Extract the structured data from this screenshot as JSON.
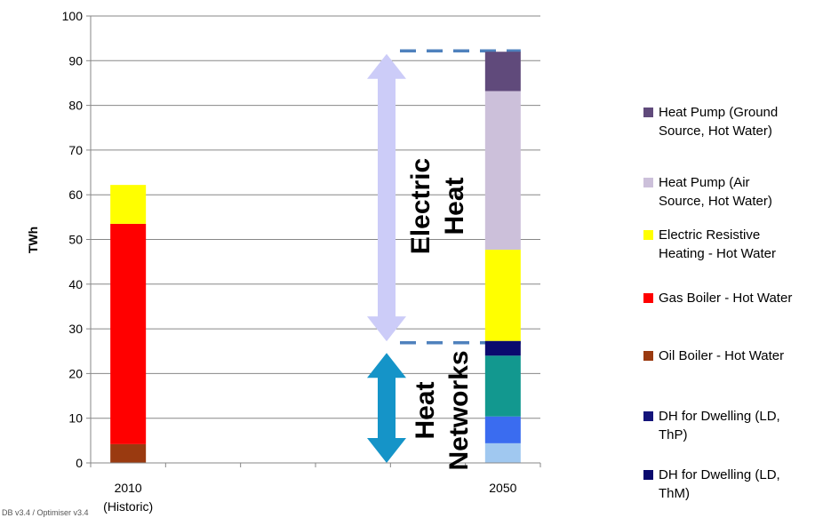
{
  "chart_data": {
    "type": "bar",
    "stacked": true,
    "ylabel": "TWh",
    "ylim": [
      0,
      100
    ],
    "yticks": [
      "0",
      "10",
      "20",
      "30",
      "40",
      "50",
      "60",
      "70",
      "80",
      "90",
      "100"
    ],
    "grid": true,
    "legend_position": "right",
    "categories": [
      "2010",
      "",
      "",
      "",
      "",
      "2050"
    ],
    "category_sublabels": [
      "(Historic)",
      "",
      "",
      "",
      "",
      ""
    ],
    "series": [
      {
        "color": "#a0c8f0",
        "values": [
          0,
          0,
          0,
          0,
          0,
          4.4
        ]
      },
      {
        "color": "#3a6cf0",
        "values": [
          0,
          0,
          0,
          0,
          0,
          6.0
        ]
      },
      {
        "color": "#12988f",
        "values": [
          0,
          0,
          0,
          0,
          0,
          13.6
        ]
      },
      {
        "name": "DH for Dwelling (LD, ThM)",
        "color": "#0a0a6e",
        "values": [
          0,
          0,
          0,
          0,
          0,
          3.3
        ]
      },
      {
        "name": "DH for Dwelling (LD, ThP)",
        "color": "#14147a",
        "values": [
          0,
          0,
          0,
          0,
          0,
          0
        ]
      },
      {
        "name": "Oil Boiler - Hot Water",
        "color": "#9a3a10",
        "values": [
          4.2,
          0,
          0,
          0,
          0,
          0
        ]
      },
      {
        "name": "Gas Boiler - Hot Water",
        "color": "#ff0000",
        "values": [
          49.3,
          0,
          0,
          0,
          0,
          0
        ]
      },
      {
        "name": "Electric Resistive Heating - Hot Water",
        "color": "#ffff00",
        "values": [
          8.7,
          0,
          0,
          0,
          0,
          20.4
        ]
      },
      {
        "name": "Heat Pump (Air Source, Hot Water)",
        "color": "#ccc0da",
        "values": [
          0,
          0,
          0,
          0,
          0,
          35.5
        ]
      },
      {
        "name": "Heat Pump (Ground Source, Hot Water)",
        "color": "#604a7b",
        "values": [
          0,
          0,
          0,
          0,
          0,
          8.8
        ]
      }
    ],
    "annotations": [
      {
        "text": [
          "Electric",
          "Heat"
        ],
        "range": [
          27,
          92
        ],
        "color": "#ccccf8"
      },
      {
        "text": [
          "Heat",
          "Networks"
        ],
        "range": [
          0,
          24
        ],
        "color": "#1594c8"
      }
    ],
    "reference_lines": [
      92.2,
      26.9
    ]
  },
  "legend": [
    {
      "lines": [
        "Heat Pump (Ground",
        "Source, Hot Water)"
      ],
      "color": "#604a7b"
    },
    {
      "lines": [
        "Heat Pump (Air",
        "Source, Hot Water)"
      ],
      "color": "#ccc0da"
    },
    {
      "lines": [
        "Electric Resistive",
        "Heating - Hot Water"
      ],
      "color": "#ffff00"
    },
    {
      "lines": [
        "Gas Boiler - Hot Water"
      ],
      "color": "#ff0000"
    },
    {
      "lines": [
        "Oil Boiler - Hot Water"
      ],
      "color": "#9a3a10"
    },
    {
      "lines": [
        "DH for Dwelling (LD,",
        "ThP)"
      ],
      "color": "#14147a"
    },
    {
      "lines": [
        "DH for Dwelling (LD,",
        "ThM)"
      ],
      "color": "#0a0a6e"
    }
  ],
  "footer": "DB v3.4 / Optimiser v3.4"
}
